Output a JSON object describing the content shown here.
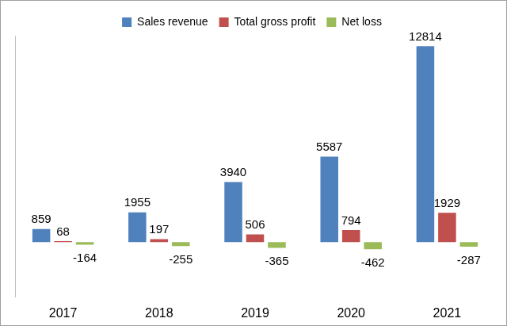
{
  "chart_data": {
    "type": "bar",
    "categories": [
      "2017",
      "2018",
      "2019",
      "2020",
      "2021"
    ],
    "series": [
      {
        "name": "Sales revenue",
        "color": "#4f81bd",
        "values": [
          859,
          1955,
          3940,
          5587,
          12814
        ]
      },
      {
        "name": "Total gross profit",
        "color": "#c0504d",
        "values": [
          68,
          197,
          506,
          794,
          1929
        ]
      },
      {
        "name": "Net loss",
        "color": "#9bbb59",
        "values": [
          -164,
          -255,
          -365,
          -462,
          -287
        ]
      }
    ],
    "ylim": [
      -3600,
      13500
    ],
    "grid": false,
    "legend": "top",
    "data_labels": true,
    "tick_labels": "x"
  }
}
